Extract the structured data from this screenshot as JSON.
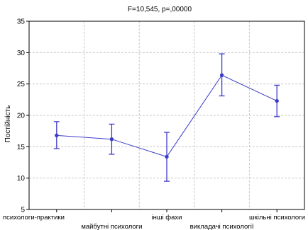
{
  "chart_data": {
    "type": "line",
    "title": "F=10,545, p=,00000",
    "xlabel": "",
    "ylabel": "Постійність",
    "ylim": [
      5,
      35
    ],
    "yticks": [
      5,
      10,
      15,
      20,
      25,
      30,
      35
    ],
    "grid": true,
    "categories": [
      "психологи-практики",
      "майбутні психологи",
      "інші фахи",
      "викладачі психології",
      "шкільні психологи"
    ],
    "series": [
      {
        "values": [
          16.8,
          16.2,
          13.4,
          26.4,
          22.3
        ],
        "error_low": [
          14.7,
          13.8,
          9.5,
          23.1,
          19.8
        ],
        "error_high": [
          19.0,
          18.6,
          17.3,
          29.8,
          24.8
        ]
      }
    ],
    "colors": {
      "series": "#3c3cc8",
      "grid": "#c8c8c8",
      "axis": "#000000"
    }
  }
}
